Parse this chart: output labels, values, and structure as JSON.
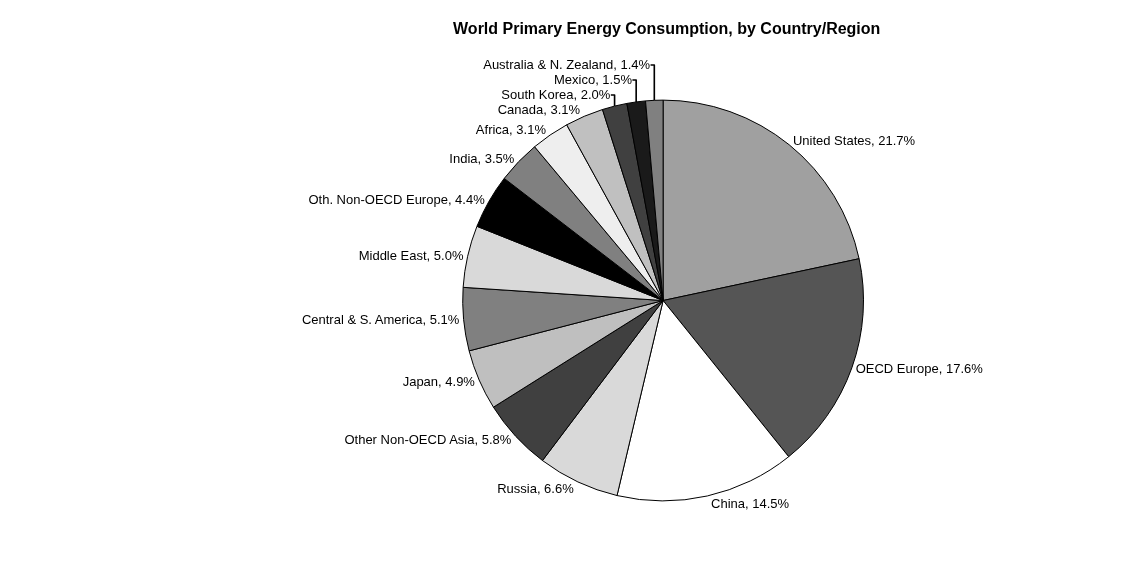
{
  "chart_data": {
    "type": "pie",
    "title": "World Primary Energy Consumption, by Country/Region",
    "categories": [
      "United States",
      "OECD Europe",
      "China",
      "Russia",
      "Other Non-OECD Asia",
      "Japan",
      "Central & S. America",
      "Middle East",
      "Oth. Non-OECD Europe",
      "India",
      "Africa",
      "Canada",
      "South Korea",
      "Mexico",
      "Australia & N. Zealand"
    ],
    "values": [
      21.7,
      17.6,
      14.5,
      6.6,
      5.8,
      4.9,
      5.1,
      5.0,
      4.4,
      3.5,
      3.1,
      3.1,
      2.0,
      1.5,
      1.4
    ],
    "value_labels": [
      "21.7%",
      "17.6%",
      "14.5%",
      "6.6%",
      "5.8%",
      "4.9%",
      "5.1%",
      "5.0%",
      "4.4%",
      "3.5%",
      "3.1%",
      "3.1%",
      "2.0%",
      "1.5%",
      "1.4%"
    ],
    "colors": [
      "#a0a0a0",
      "#555555",
      "#ffffff",
      "#d9d9d9",
      "#404040",
      "#bfbfbf",
      "#808080",
      "#d9d9d9",
      "#000000",
      "#808080",
      "#eeeeee",
      "#c0c0c0",
      "#404040",
      "#1a1a1a",
      "#808080"
    ],
    "legend": false
  }
}
